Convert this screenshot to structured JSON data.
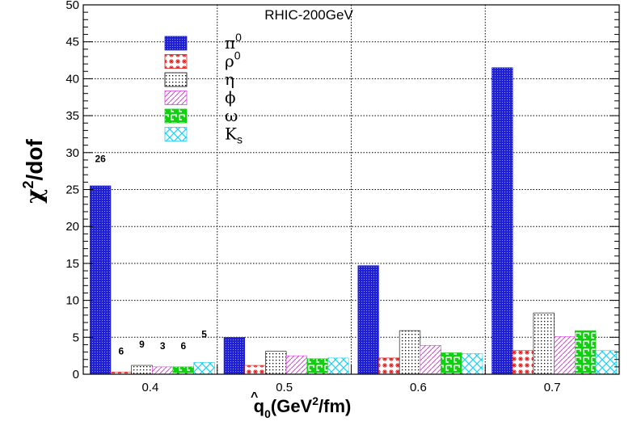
{
  "chart_data": {
    "type": "bar",
    "title": "RHIC-200GeV",
    "xlabel": {
      "q": "q",
      "hat": "^",
      "sub": "0",
      "open": "(GeV",
      "sup": "2",
      "close": "/fm)"
    },
    "ylabel": {
      "chi": "χ",
      "sup": "2",
      "rest": "/dof"
    },
    "ylim": [
      0,
      50
    ],
    "yticks": [
      0,
      5,
      10,
      15,
      20,
      25,
      30,
      35,
      40,
      45,
      50
    ],
    "categories": [
      "0.4",
      "0.5",
      "0.6",
      "0.7"
    ],
    "grid": true,
    "legend_position": "top-left",
    "series": [
      {
        "name": "π",
        "sup": "0",
        "sub": "",
        "color": "#1f1fd6",
        "pattern": "dots-dense",
        "values": [
          25.5,
          5.0,
          14.7,
          41.5
        ]
      },
      {
        "name": "ρ",
        "sup": "0",
        "sub": "",
        "color": "#e02020",
        "pattern": "stars",
        "values": [
          0.3,
          1.2,
          2.2,
          3.2
        ]
      },
      {
        "name": "η",
        "sup": "",
        "sub": "",
        "color": "#000000",
        "pattern": "dots-sparse",
        "values": [
          1.2,
          3.1,
          5.9,
          8.3
        ]
      },
      {
        "name": "ϕ",
        "sup": "",
        "sub": "",
        "color": "#e040e0",
        "pattern": "diagonal",
        "values": [
          1.0,
          2.5,
          3.9,
          5.1
        ]
      },
      {
        "name": "ω",
        "sup": "",
        "sub": "",
        "color": "#10d010",
        "pattern": "maze",
        "values": [
          1.0,
          2.1,
          2.9,
          5.9
        ]
      },
      {
        "name": "K",
        "sup": "",
        "sub": "s",
        "color": "#20d0f0",
        "pattern": "crosshatch",
        "values": [
          1.6,
          2.2,
          2.8,
          3.2
        ]
      }
    ],
    "annotations": [
      {
        "category": "0.4",
        "series": "π0",
        "text": "26"
      },
      {
        "category": "0.4",
        "series": "ρ0",
        "text": "6"
      },
      {
        "category": "0.4",
        "series": "η",
        "text": "9"
      },
      {
        "category": "0.4",
        "series": "ϕ",
        "text": "3"
      },
      {
        "category": "0.4",
        "series": "ω",
        "text": "6"
      },
      {
        "category": "0.4",
        "series": "Ks",
        "text": "5"
      }
    ]
  }
}
